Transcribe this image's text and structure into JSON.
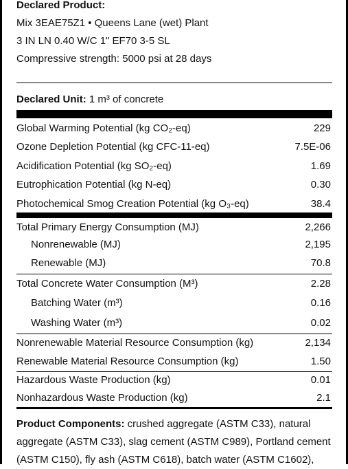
{
  "declared_product": {
    "label": "Declared Product:",
    "lines": [
      "Mix 3EAE75Z1 • Queens Lane (wet) Plant",
      "3 IN LN 0.40 W/C 1\" EF70 3-5 SL",
      "Compressive strength: 5000 psi at 28 days"
    ]
  },
  "declared_unit": {
    "label": "Declared Unit:",
    "value": "1 m³ of concrete"
  },
  "groups": [
    [
      {
        "label": "Global Warming Potential (kg CO₂-eq)",
        "value": "229"
      },
      {
        "label": "Ozone Depletion Potential (kg CFC-11-eq)",
        "value": "7.5E-06"
      },
      {
        "label": "Acidification Potential (kg SO₂-eq)",
        "value": "1.69"
      },
      {
        "label": "Eutrophication Potential (kg N-eq)",
        "value": "0.30"
      },
      {
        "label": "Photochemical Smog Creation Potential (kg O₃-eq)",
        "value": "38.4"
      }
    ],
    [
      {
        "label": "Total Primary Energy Consumption (MJ)",
        "value": "2,266",
        "children": [
          {
            "label": "Nonrenewable (MJ)",
            "value": "2,195"
          },
          {
            "label": "Renewable (MJ)",
            "value": "70.8"
          }
        ]
      }
    ],
    [
      {
        "label": "Total Concrete Water Consumption (M³)",
        "value": "2.28",
        "children": [
          {
            "label": "Batching Water (m³)",
            "value": "0.16"
          },
          {
            "label": "Washing Water (m³)",
            "value": "0.02"
          }
        ]
      }
    ],
    [
      {
        "label": "Nonrenewable Material Resource Consumption (kg)",
        "value": "2,134"
      },
      {
        "label": "Renewable Material Resource Consumption (kg)",
        "value": "1.50"
      }
    ],
    [
      {
        "label": "Hazardous Waste Production (kg)",
        "value": "0.01"
      },
      {
        "label": "Nonhazardous Waste Production (kg)",
        "value": "2.1"
      }
    ]
  ],
  "product_components": {
    "label": "Product Components:",
    "text": "crushed aggregate (ASTM C33), natural aggregate (ASTM C33), slag cement (ASTM C989), Portland cement (ASTM C150), fly ash (ASTM C618), batch water (ASTM C1602),"
  }
}
